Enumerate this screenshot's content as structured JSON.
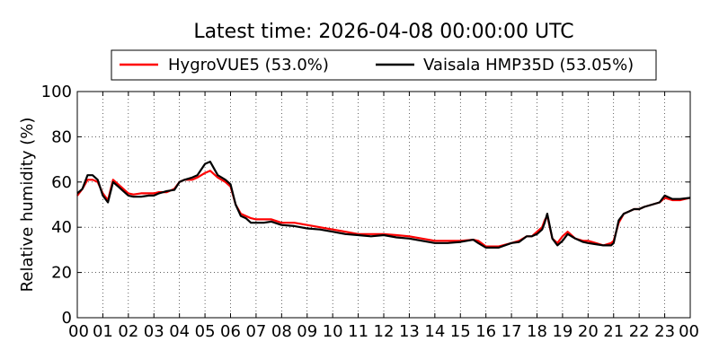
{
  "chart_data": {
    "type": "line",
    "title": "Latest time: 2026-04-08 00:00:00 UTC",
    "xlabel": "",
    "ylabel": "Relative humidity (%)",
    "xlim": [
      0,
      24
    ],
    "ylim": [
      0,
      100
    ],
    "yticks": [
      "0",
      "20",
      "40",
      "60",
      "80",
      "100"
    ],
    "xticks": [
      "00",
      "01",
      "02",
      "03",
      "04",
      "05",
      "06",
      "07",
      "08",
      "09",
      "10",
      "11",
      "12",
      "13",
      "14",
      "15",
      "16",
      "17",
      "18",
      "19",
      "20",
      "21",
      "22",
      "23",
      "00"
    ],
    "grid": true,
    "legend_position": "top",
    "x": [
      0.0,
      0.2,
      0.4,
      0.6,
      0.8,
      1.0,
      1.2,
      1.4,
      1.6,
      1.8,
      2.0,
      2.2,
      2.5,
      2.8,
      3.0,
      3.2,
      3.5,
      3.8,
      4.0,
      4.2,
      4.5,
      4.7,
      5.0,
      5.2,
      5.5,
      5.8,
      6.0,
      6.2,
      6.4,
      6.6,
      6.8,
      7.0,
      7.3,
      7.6,
      8.0,
      8.5,
      9.0,
      9.5,
      10.0,
      10.5,
      11.0,
      11.5,
      12.0,
      12.5,
      13.0,
      13.5,
      14.0,
      14.5,
      15.0,
      15.5,
      15.7,
      16.0,
      16.5,
      17.0,
      17.3,
      17.6,
      17.8,
      18.0,
      18.2,
      18.3,
      18.4,
      18.6,
      18.8,
      19.0,
      19.2,
      19.5,
      19.8,
      20.0,
      20.3,
      20.6,
      20.9,
      21.0,
      21.2,
      21.4,
      21.6,
      21.8,
      22.0,
      22.2,
      22.5,
      22.8,
      23.0,
      23.3,
      23.6,
      24.0
    ],
    "series": [
      {
        "name": "HygroVUE5 (53.0%)",
        "color": "#ff0000",
        "values": [
          54,
          57,
          61,
          61,
          60,
          55,
          52,
          61,
          59,
          57,
          55,
          54.5,
          55,
          55,
          55,
          55.5,
          55.5,
          57,
          60,
          61,
          61,
          62,
          64,
          65,
          62,
          60,
          58,
          50,
          46,
          45,
          44,
          43.5,
          43.5,
          43.5,
          42,
          42,
          41,
          40,
          39,
          38,
          37,
          37,
          37,
          36.5,
          36,
          35,
          34,
          34,
          34,
          34.5,
          34,
          31.5,
          31.5,
          33,
          34,
          36,
          36,
          38,
          40,
          43,
          45,
          35,
          33,
          36,
          38,
          35,
          34,
          34,
          33,
          32,
          33,
          34,
          42,
          46,
          47,
          48,
          48,
          49,
          50,
          51,
          53,
          52,
          52,
          53
        ]
      },
      {
        "name": "Vaisala HMP35D (53.05%)",
        "color": "#000000",
        "values": [
          55,
          57,
          63,
          63,
          61,
          54,
          51,
          60,
          58,
          56,
          54,
          53.5,
          53.5,
          54,
          54,
          55,
          56,
          56.5,
          60,
          61,
          62,
          63,
          68,
          69,
          63,
          61,
          59,
          50,
          45,
          44,
          42,
          42,
          42,
          42.5,
          41,
          40.5,
          39.5,
          39,
          38,
          37,
          36.5,
          36,
          36.5,
          35.5,
          35,
          34,
          33,
          33,
          33.5,
          34.5,
          33,
          31,
          31,
          33,
          33.5,
          36,
          36,
          37,
          39,
          42,
          46,
          35,
          32,
          34,
          37,
          35,
          33.5,
          33,
          32.5,
          32,
          32,
          33,
          43,
          46,
          47,
          48,
          48,
          49,
          50,
          51,
          54,
          52.5,
          52.5,
          53
        ]
      }
    ]
  }
}
